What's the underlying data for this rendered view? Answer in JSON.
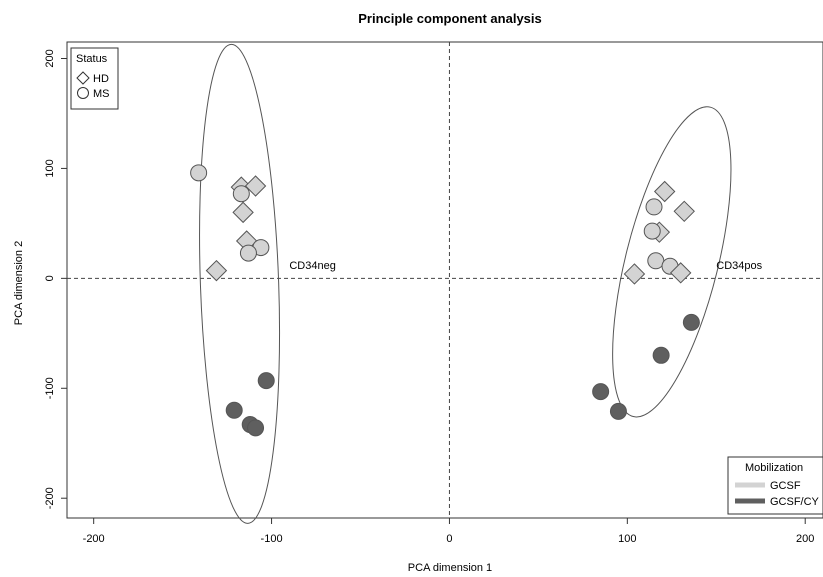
{
  "chart_data": {
    "type": "scatter",
    "title": "Principle component analysis",
    "xlabel": "PCA dimension 1",
    "ylabel": "PCA dimension 2",
    "xlim": [
      -215,
      210
    ],
    "ylim": [
      -218,
      215
    ],
    "xticks": [
      -200,
      -100,
      0,
      100,
      200
    ],
    "yticks": [
      -200,
      -100,
      0,
      100,
      200
    ],
    "x_tick_labels": [
      "-200",
      "-100",
      "0",
      "100",
      "200"
    ],
    "y_tick_labels": [
      "-200",
      "-100",
      "0",
      "100",
      "200"
    ],
    "reference_lines": {
      "x": 0,
      "y": 0,
      "style": "dashed"
    },
    "colors": {
      "GCSF": "#d3d3d3",
      "GCSF/CY": "#5f5f5f",
      "outline": "#555555"
    },
    "shape_legend": {
      "title": "Status",
      "placement": "top-left",
      "entries": [
        {
          "label": "HD",
          "shape": "diamond"
        },
        {
          "label": "MS",
          "shape": "circle"
        }
      ]
    },
    "color_legend": {
      "title": "Mobilization",
      "placement": "bottom-right",
      "entries": [
        {
          "label": "GCSF",
          "color": "#d3d3d3"
        },
        {
          "label": "GCSF/CY",
          "color": "#5f5f5f"
        }
      ]
    },
    "clusters": [
      {
        "label": "CD34neg",
        "center": [
          -118,
          -5
        ],
        "semi_axes": [
          22,
          218
        ],
        "rotation_deg": -2,
        "label_pos": [
          -90,
          12
        ]
      },
      {
        "label": "CD34pos",
        "center": [
          125,
          15
        ],
        "semi_axes": [
          26,
          145
        ],
        "rotation_deg": 14,
        "label_pos": [
          150,
          12
        ]
      }
    ],
    "points": [
      {
        "x": -141,
        "y": 96,
        "status": "MS",
        "mobilization": "GCSF"
      },
      {
        "x": -117,
        "y": 83,
        "status": "HD",
        "mobilization": "GCSF"
      },
      {
        "x": -109,
        "y": 84,
        "status": "HD",
        "mobilization": "GCSF"
      },
      {
        "x": -117,
        "y": 77,
        "status": "MS",
        "mobilization": "GCSF"
      },
      {
        "x": -116,
        "y": 60,
        "status": "HD",
        "mobilization": "GCSF"
      },
      {
        "x": -114,
        "y": 34,
        "status": "HD",
        "mobilization": "GCSF"
      },
      {
        "x": -106,
        "y": 28,
        "status": "MS",
        "mobilization": "GCSF"
      },
      {
        "x": -113,
        "y": 23,
        "status": "MS",
        "mobilization": "GCSF"
      },
      {
        "x": -131,
        "y": 7,
        "status": "HD",
        "mobilization": "GCSF"
      },
      {
        "x": -103,
        "y": -93,
        "status": "MS",
        "mobilization": "GCSF/CY"
      },
      {
        "x": -121,
        "y": -120,
        "status": "MS",
        "mobilization": "GCSF/CY"
      },
      {
        "x": -112,
        "y": -133,
        "status": "MS",
        "mobilization": "GCSF/CY"
      },
      {
        "x": -109,
        "y": -136,
        "status": "MS",
        "mobilization": "GCSF/CY"
      },
      {
        "x": 121,
        "y": 79,
        "status": "HD",
        "mobilization": "GCSF"
      },
      {
        "x": 115,
        "y": 65,
        "status": "MS",
        "mobilization": "GCSF"
      },
      {
        "x": 132,
        "y": 61,
        "status": "HD",
        "mobilization": "GCSF"
      },
      {
        "x": 118,
        "y": 42,
        "status": "HD",
        "mobilization": "GCSF"
      },
      {
        "x": 114,
        "y": 43,
        "status": "MS",
        "mobilization": "GCSF"
      },
      {
        "x": 116,
        "y": 16,
        "status": "MS",
        "mobilization": "GCSF"
      },
      {
        "x": 124,
        "y": 11,
        "status": "MS",
        "mobilization": "GCSF"
      },
      {
        "x": 130,
        "y": 5,
        "status": "HD",
        "mobilization": "GCSF"
      },
      {
        "x": 104,
        "y": 4,
        "status": "HD",
        "mobilization": "GCSF"
      },
      {
        "x": 136,
        "y": -40,
        "status": "MS",
        "mobilization": "GCSF/CY"
      },
      {
        "x": 119,
        "y": -70,
        "status": "MS",
        "mobilization": "GCSF/CY"
      },
      {
        "x": 85,
        "y": -103,
        "status": "MS",
        "mobilization": "GCSF/CY"
      },
      {
        "x": 95,
        "y": -121,
        "status": "MS",
        "mobilization": "GCSF/CY"
      }
    ]
  }
}
